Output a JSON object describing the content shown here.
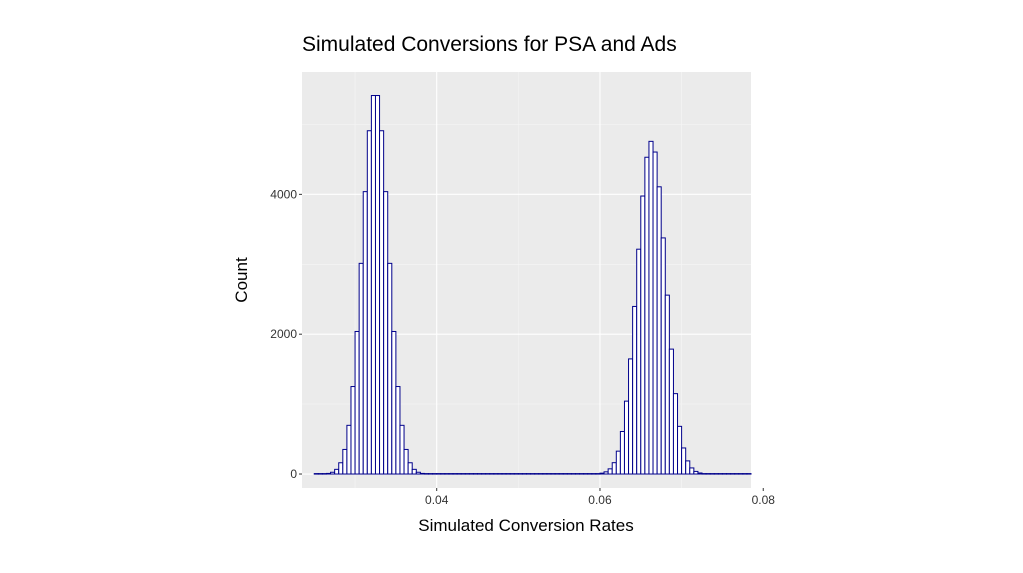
{
  "chart_data": {
    "type": "histogram",
    "title": "Simulated Conversions for PSA and Ads",
    "xlabel": "Simulated Conversion Rates",
    "ylabel": "Count",
    "xlim": [
      0.0235,
      0.0785
    ],
    "ylim": [
      -200,
      5750
    ],
    "x_ticks": [
      {
        "value": 0.04,
        "label": "0.04"
      },
      {
        "value": 0.06,
        "label": "0.06"
      },
      {
        "value": 0.08,
        "label": "0.08"
      }
    ],
    "y_ticks": [
      {
        "value": 0,
        "label": "0"
      },
      {
        "value": 2000,
        "label": "2000"
      },
      {
        "value": 4000,
        "label": "4000"
      }
    ],
    "bin_width": 0.0005,
    "bin_start": 0.025,
    "grid": true,
    "colors": {
      "panel_background": "#ebebeb",
      "grid_major": "#ffffff",
      "grid_minor": "#f5f5f5",
      "bar_fill": "#ffffff",
      "bar_outline": "#00008b"
    },
    "series": [
      {
        "peaks": [
          {
            "center": 0.0325,
            "sd": 0.0016,
            "peak_count": 5480
          },
          {
            "center": 0.0663,
            "sd": 0.00175,
            "peak_count": 4760
          }
        ]
      }
    ]
  }
}
